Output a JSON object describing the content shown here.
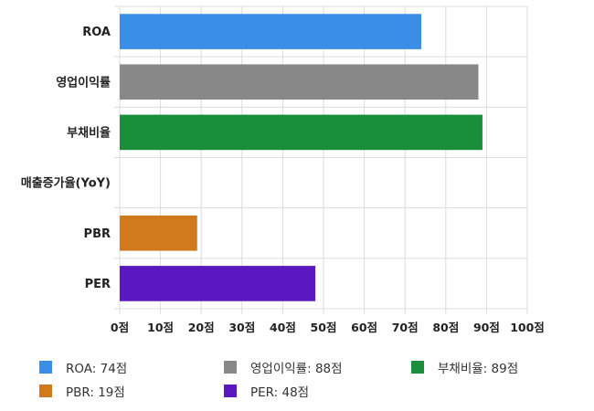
{
  "chart_data": {
    "type": "bar",
    "orientation": "horizontal",
    "categories": [
      "ROA",
      "영업이익률",
      "부채비율",
      "매출증가율(YoY)",
      "PBR",
      "PER"
    ],
    "values": [
      74,
      88,
      89,
      null,
      19,
      48
    ],
    "colors": [
      "#3a8ee6",
      "#888888",
      "#1a8f3a",
      null,
      "#d07a1b",
      "#5a18c0"
    ],
    "xlim": [
      0,
      100
    ],
    "xticks": [
      0,
      10,
      20,
      30,
      40,
      50,
      60,
      70,
      80,
      90,
      100
    ],
    "xtick_labels": [
      "0점",
      "10점",
      "20점",
      "30점",
      "40점",
      "50점",
      "60점",
      "70점",
      "80점",
      "90점",
      "100점"
    ],
    "grid": true,
    "legend_position": "bottom",
    "legend": [
      {
        "label": "ROA: 74점",
        "color": "#3a8ee6"
      },
      {
        "label": "영업이익률: 88점",
        "color": "#888888"
      },
      {
        "label": "부채비율: 89점",
        "color": "#1a8f3a"
      },
      {
        "label": "PBR: 19점",
        "color": "#d07a1b"
      },
      {
        "label": "PER: 48점",
        "color": "#5a18c0"
      }
    ]
  }
}
